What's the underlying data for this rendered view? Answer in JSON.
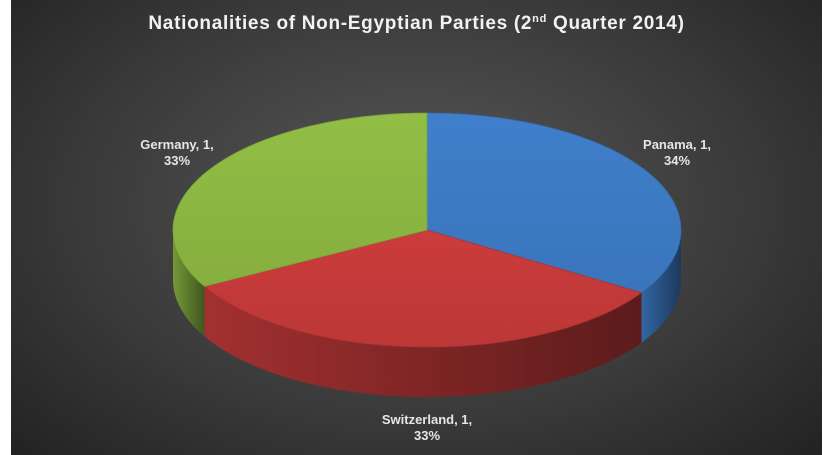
{
  "chart_data": {
    "type": "pie",
    "style": "3d",
    "title": {
      "main": "Nationalities of Non-Egyptian Parties (2",
      "superscript": "nd",
      "tail": " Quarter 2014)"
    },
    "slices": [
      {
        "name": "Panama",
        "value": 1,
        "percent": "34%",
        "label_line1": "Panama, 1,",
        "label_line2": "34%",
        "color": "#3f7fcb"
      },
      {
        "name": "Switzerland",
        "value": 1,
        "percent": "33%",
        "label_line1": "Switzerland, 1,",
        "label_line2": "33%",
        "color": "#cc3c3c"
      },
      {
        "name": "Germany",
        "value": 1,
        "percent": "33%",
        "label_line1": "Germany, 1,",
        "label_line2": "33%",
        "color": "#92be45"
      }
    ],
    "legend": "none",
    "data_labels": "outside"
  }
}
